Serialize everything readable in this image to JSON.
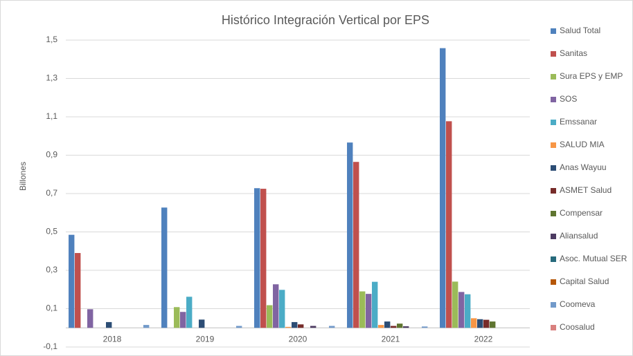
{
  "chart_data": {
    "type": "bar",
    "title": "Histórico Integración Vertical por EPS",
    "y_label": "Billones",
    "categories": [
      "2018",
      "2019",
      "2020",
      "2021",
      "2022"
    ],
    "series": [
      {
        "name": "Salud Total",
        "color": "#4f81bd",
        "values": [
          0.485,
          0.627,
          0.728,
          0.966,
          1.458
        ]
      },
      {
        "name": "Sanitas",
        "color": "#c0504d",
        "values": [
          0.39,
          0,
          0.725,
          0.865,
          1.077
        ]
      },
      {
        "name": "Sura EPS y EMP",
        "color": "#9bbb59",
        "values": [
          0,
          0.108,
          0.118,
          0.19,
          0.241
        ]
      },
      {
        "name": "SOS",
        "color": "#8064a2",
        "values": [
          0.097,
          0.083,
          0.227,
          0.177,
          0.187
        ]
      },
      {
        "name": "Emssanar",
        "color": "#4bacc6",
        "values": [
          0,
          0.162,
          0.198,
          0.24,
          0.175
        ]
      },
      {
        "name": "SALUD MIA",
        "color": "#f79646",
        "values": [
          0,
          0,
          0.005,
          0.015,
          0.05
        ]
      },
      {
        "name": "Anas Wayuu",
        "color": "#2c4d75",
        "values": [
          0.03,
          0.043,
          0.03,
          0.033,
          0.045
        ]
      },
      {
        "name": "ASMET Salud",
        "color": "#772c2a",
        "values": [
          0,
          0,
          0.018,
          0.01,
          0.042
        ]
      },
      {
        "name": "Compensar",
        "color": "#5f7530",
        "values": [
          0,
          0,
          0,
          0.022,
          0.033
        ]
      },
      {
        "name": "Aliansalud",
        "color": "#4d3b62",
        "values": [
          0,
          0,
          0.01,
          0.008,
          0
        ]
      },
      {
        "name": "Asoc. Mutual SER",
        "color": "#276a7c",
        "values": [
          0,
          0,
          0,
          0,
          0
        ]
      },
      {
        "name": "Capital Salud",
        "color": "#b65708",
        "values": [
          0,
          0,
          0,
          0,
          0
        ]
      },
      {
        "name": "Coomeva",
        "color": "#729aca",
        "values": [
          0.015,
          0.01,
          0.01,
          0.007,
          0
        ]
      },
      {
        "name": "Coosalud",
        "color": "#d9807e",
        "values": [
          0,
          0,
          0,
          0,
          0
        ]
      }
    ],
    "ylim": [
      -0.1,
      1.5
    ],
    "yticks": [
      {
        "value": -0.1,
        "label": "-0,1"
      },
      {
        "value": 0.1,
        "label": "0,1"
      },
      {
        "value": 0.3,
        "label": "0,3"
      },
      {
        "value": 0.5,
        "label": "0,5"
      },
      {
        "value": 0.7,
        "label": "0,7"
      },
      {
        "value": 0.9,
        "label": "0,9"
      },
      {
        "value": 1.1,
        "label": "1,1"
      },
      {
        "value": 1.3,
        "label": "1,3"
      },
      {
        "value": 1.5,
        "label": "1,5"
      }
    ],
    "grid": true,
    "legend": "right"
  }
}
